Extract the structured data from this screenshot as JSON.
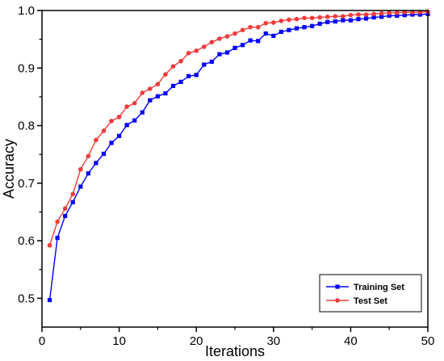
{
  "chart_data": {
    "type": "line",
    "title": "",
    "xlabel": "Iterations",
    "ylabel": "Accuracy",
    "xlim": [
      0,
      50
    ],
    "ylim": [
      0.45,
      1.0
    ],
    "xticks": [
      0,
      10,
      20,
      30,
      40,
      50
    ],
    "yticks": [
      0.5,
      0.6,
      0.7,
      0.8,
      0.9,
      1.0
    ],
    "ytick_labels": [
      "0.5",
      "0.6",
      "0.7",
      "0.8",
      "0.9",
      "1.0"
    ],
    "grid": false,
    "legend_position": "bottom-right",
    "x": [
      1,
      2,
      3,
      4,
      5,
      6,
      7,
      8,
      9,
      10,
      11,
      12,
      13,
      14,
      15,
      16,
      17,
      18,
      19,
      20,
      21,
      22,
      23,
      24,
      25,
      26,
      27,
      28,
      29,
      30,
      31,
      32,
      33,
      34,
      35,
      36,
      37,
      38,
      39,
      40,
      41,
      42,
      43,
      44,
      45,
      46,
      47,
      48,
      49,
      50
    ],
    "series": [
      {
        "name": "Training Set",
        "color": "#0000ff",
        "marker": "square",
        "values": [
          0.497,
          0.605,
          0.643,
          0.667,
          0.694,
          0.717,
          0.735,
          0.751,
          0.77,
          0.782,
          0.801,
          0.809,
          0.823,
          0.844,
          0.851,
          0.856,
          0.869,
          0.876,
          0.886,
          0.888,
          0.906,
          0.911,
          0.924,
          0.927,
          0.935,
          0.94,
          0.948,
          0.947,
          0.96,
          0.956,
          0.963,
          0.966,
          0.969,
          0.971,
          0.973,
          0.977,
          0.98,
          0.981,
          0.983,
          0.983,
          0.985,
          0.986,
          0.988,
          0.989,
          0.991,
          0.991,
          0.992,
          0.993,
          0.993,
          0.994
        ]
      },
      {
        "name": "Test Set",
        "color": "#ef3b3b",
        "marker": "circle",
        "values": [
          0.592,
          0.633,
          0.656,
          0.681,
          0.724,
          0.747,
          0.775,
          0.791,
          0.808,
          0.815,
          0.833,
          0.839,
          0.857,
          0.864,
          0.872,
          0.889,
          0.903,
          0.912,
          0.926,
          0.93,
          0.937,
          0.945,
          0.951,
          0.955,
          0.96,
          0.966,
          0.971,
          0.971,
          0.978,
          0.979,
          0.982,
          0.984,
          0.985,
          0.987,
          0.987,
          0.988,
          0.989,
          0.99,
          0.99,
          0.992,
          0.993,
          0.993,
          0.994,
          0.995,
          0.996,
          0.996,
          0.997,
          0.997,
          0.997,
          0.998
        ]
      }
    ]
  }
}
